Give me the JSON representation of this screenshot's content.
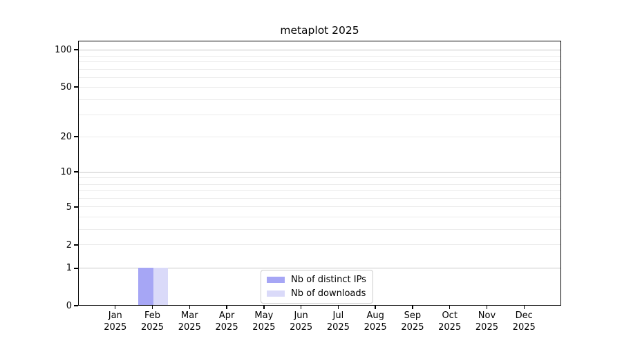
{
  "chart_data": {
    "type": "bar",
    "title": "metaplot 2025",
    "x": {
      "months": [
        "Jan",
        "Feb",
        "Mar",
        "Apr",
        "May",
        "Jun",
        "Jul",
        "Aug",
        "Sep",
        "Oct",
        "Nov",
        "Dec"
      ],
      "year": "2025"
    },
    "categories": [
      "Jan 2025",
      "Feb 2025",
      "Mar 2025",
      "Apr 2025",
      "May 2025",
      "Jun 2025",
      "Jul 2025",
      "Aug 2025",
      "Sep 2025",
      "Oct 2025",
      "Nov 2025",
      "Dec 2025"
    ],
    "series": [
      {
        "name": "Nb of distinct IPs",
        "color": "#a6a6f5",
        "values": [
          0,
          1,
          0,
          0,
          0,
          0,
          0,
          0,
          0,
          0,
          0,
          0
        ]
      },
      {
        "name": "Nb of downloads",
        "color": "#dadaf9",
        "values": [
          0,
          1,
          0,
          0,
          0,
          0,
          0,
          0,
          0,
          0,
          0,
          0
        ]
      }
    ],
    "y_axis": {
      "scale": "symlog",
      "tick_labels": [
        "100",
        "50",
        "20",
        "10",
        "5",
        "2",
        "1",
        "0"
      ],
      "ylim": [
        0,
        120
      ],
      "grid": true
    },
    "legend": {
      "position": "lower center",
      "entries": [
        "Nb of distinct IPs",
        "Nb of downloads"
      ]
    }
  },
  "colors": {
    "bar_distinct_ips": "#a6a6f5",
    "bar_downloads": "#dadaf9",
    "grid_major": "#c6c6c6",
    "grid_minor": "#ebebeb",
    "axis": "#000000",
    "legend_border": "#cccccc",
    "background": "#ffffff"
  }
}
